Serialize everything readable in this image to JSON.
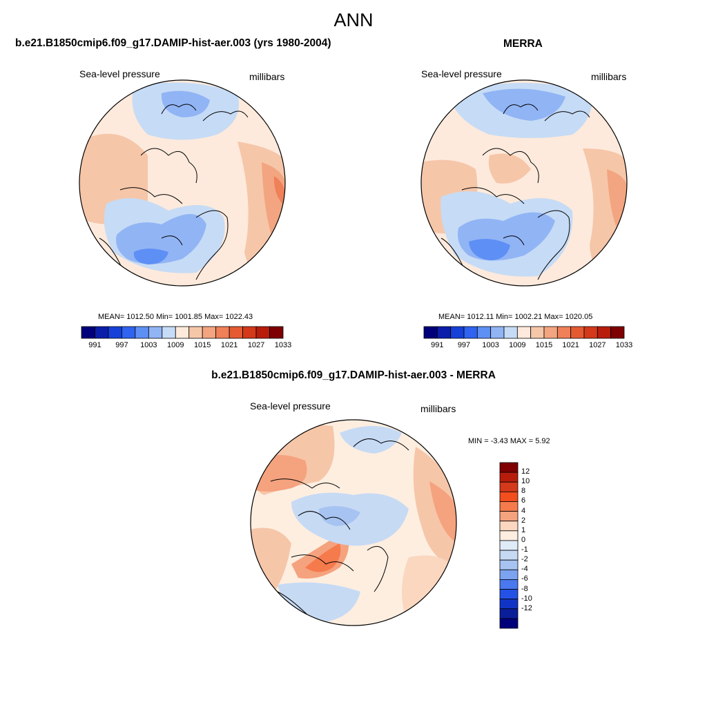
{
  "page": {
    "title": "ANN",
    "bottom_title": "b.e21.B1850cmip6.f09_g17.DAMIP-hist-aer.003 - MERRA"
  },
  "panels": [
    {
      "title": "b.e21.B1850cmip6.f09_g17.DAMIP-hist-aer.003 (yrs 1980-2004)",
      "left_label": "Sea-level pressure",
      "right_label": "millibars",
      "stats_text": "MEAN= 1012.50  Min= 1001.85  Max= 1022.43"
    },
    {
      "title": "MERRA",
      "left_label": "Sea-level pressure",
      "right_label": "millibars",
      "stats_text": "MEAN= 1012.11  Min= 1002.21  Max= 1020.05"
    },
    {
      "left_label": "Sea-level pressure",
      "right_label": "millibars",
      "stats_text": "MIN =  -3.43 MAX =   5.92"
    }
  ],
  "colorbar_abs": {
    "colors": [
      "#00007a",
      "#0a1eaa",
      "#1541d8",
      "#2f63f0",
      "#5e8ff5",
      "#91b4f5",
      "#c6dbf5",
      "#fdeadc",
      "#f6c6a9",
      "#f2a580",
      "#ef8058",
      "#e65a32",
      "#d3391a",
      "#b81d0c",
      "#7f0000"
    ],
    "tick_labels": [
      "991",
      "997",
      "1003",
      "1009",
      "1015",
      "1021",
      "1027",
      "1033"
    ]
  },
  "colorbar_diff": {
    "colors": [
      "#7f0000",
      "#b81d0c",
      "#d3391a",
      "#f24e1e",
      "#f57a4c",
      "#f5a27e",
      "#fbd7c0",
      "#fdeee0",
      "#e0ebf8",
      "#c6daf4",
      "#a7c3f2",
      "#7ca3f0",
      "#4a78ee",
      "#2452e6",
      "#1234c6",
      "#0a1e9a",
      "#00007a"
    ],
    "tick_labels": [
      "12",
      "10",
      "8",
      "6",
      "4",
      "2",
      "1",
      "0",
      "-1",
      "-2",
      "-4",
      "-6",
      "-8",
      "-10",
      "-12"
    ]
  }
}
